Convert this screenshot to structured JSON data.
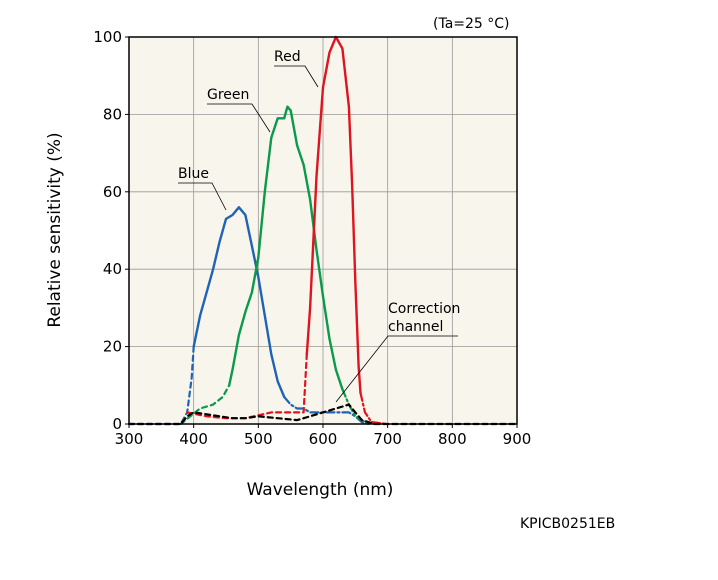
{
  "chart_data": {
    "type": "line",
    "condition": "(Ta=25 °C)",
    "xlabel": "Wavelength (nm)",
    "ylabel": "Relative sensitivity (%)",
    "xlim": [
      300,
      900
    ],
    "ylim": [
      0,
      100
    ],
    "x_ticks": [
      300,
      400,
      500,
      600,
      700,
      800,
      900
    ],
    "y_ticks": [
      0,
      20,
      40,
      60,
      80,
      100
    ],
    "grid": true,
    "series": [
      {
        "name": "Blue",
        "color": "#1f63b4",
        "solid": [
          [
            400,
            20
          ],
          [
            410,
            28
          ],
          [
            420,
            34
          ],
          [
            430,
            40
          ],
          [
            440,
            47
          ],
          [
            450,
            53
          ],
          [
            460,
            54
          ],
          [
            470,
            56
          ],
          [
            480,
            54
          ],
          [
            490,
            46
          ],
          [
            500,
            38
          ],
          [
            510,
            28
          ],
          [
            520,
            18
          ],
          [
            530,
            11
          ],
          [
            540,
            7
          ]
        ],
        "dashed": [
          [
            300,
            0
          ],
          [
            380,
            0
          ],
          [
            390,
            3
          ],
          [
            397,
            12
          ],
          [
            400,
            20
          ]
        ],
        "dash_dot": [
          [
            540,
            7
          ],
          [
            550,
            5
          ],
          [
            560,
            4
          ],
          [
            570,
            4
          ],
          [
            580,
            3
          ],
          [
            600,
            3
          ],
          [
            620,
            3
          ],
          [
            640,
            3
          ],
          [
            650,
            2
          ],
          [
            660,
            0.5
          ],
          [
            670,
            0
          ]
        ]
      },
      {
        "name": "Green",
        "color": "#0a9a4a",
        "solid": [
          [
            455,
            10
          ],
          [
            460,
            14
          ],
          [
            470,
            23
          ],
          [
            480,
            29
          ],
          [
            490,
            34
          ],
          [
            500,
            43
          ],
          [
            510,
            60
          ],
          [
            520,
            74
          ],
          [
            530,
            79
          ],
          [
            540,
            79
          ],
          [
            545,
            82
          ],
          [
            550,
            81
          ],
          [
            560,
            72
          ],
          [
            570,
            67
          ],
          [
            580,
            58
          ],
          [
            590,
            45
          ],
          [
            600,
            33
          ],
          [
            610,
            22
          ],
          [
            620,
            14
          ],
          [
            630,
            9
          ]
        ],
        "dashed": [
          [
            380,
            0
          ],
          [
            395,
            2
          ],
          [
            410,
            4
          ],
          [
            430,
            5
          ],
          [
            445,
            7
          ],
          [
            455,
            10
          ]
        ],
        "dash_dot": [
          [
            630,
            9
          ],
          [
            640,
            5
          ],
          [
            650,
            2
          ],
          [
            660,
            1
          ],
          [
            670,
            0
          ]
        ]
      },
      {
        "name": "Red",
        "color": "#e0141e",
        "solid": [
          [
            575,
            18
          ],
          [
            580,
            30
          ],
          [
            590,
            64
          ],
          [
            600,
            87
          ],
          [
            610,
            96
          ],
          [
            620,
            100
          ],
          [
            630,
            97
          ],
          [
            640,
            82
          ],
          [
            645,
            62
          ],
          [
            650,
            37
          ],
          [
            655,
            15
          ],
          [
            658,
            8
          ]
        ],
        "dashed": [
          [
            390,
            3
          ],
          [
            420,
            2
          ],
          [
            450,
            1.5
          ],
          [
            480,
            1.5
          ],
          [
            520,
            3
          ],
          [
            550,
            3
          ],
          [
            570,
            3
          ],
          [
            575,
            18
          ]
        ],
        "dash_dot": [
          [
            658,
            8
          ],
          [
            665,
            3
          ],
          [
            675,
            0.5
          ],
          [
            700,
            0
          ]
        ]
      },
      {
        "name": "Correction channel",
        "color": "#000000",
        "dashed": [
          [
            300,
            0
          ],
          [
            380,
            0
          ],
          [
            390,
            2
          ],
          [
            400,
            3
          ],
          [
            420,
            2.5
          ],
          [
            440,
            2
          ],
          [
            460,
            1.5
          ],
          [
            480,
            1.5
          ],
          [
            500,
            2
          ],
          [
            530,
            1.5
          ],
          [
            560,
            1
          ],
          [
            580,
            2
          ],
          [
            600,
            3
          ],
          [
            620,
            4
          ],
          [
            640,
            5
          ],
          [
            650,
            3
          ],
          [
            660,
            1
          ],
          [
            680,
            0
          ],
          [
            900,
            0
          ]
        ]
      }
    ],
    "labels": {
      "red": "Red",
      "green": "Green",
      "blue": "Blue",
      "correction_line1": "Correction",
      "correction_line2": "channel"
    },
    "background_color": "#f8f5ec",
    "grid_color": "#9a9a9a"
  },
  "figure_code": "KPICB0251EB"
}
